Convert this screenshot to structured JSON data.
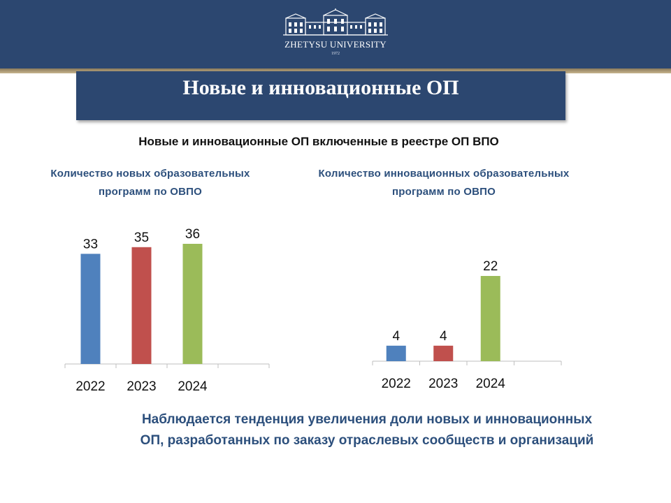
{
  "header": {
    "university_name": "ZHETYSU UNIVERSITY",
    "founded_year": "1972"
  },
  "slide": {
    "title": "Новые и инновационные  ОП",
    "subtitle": "Новые и инновационные ОП включенные в реестре ОП ВПО",
    "conclusion": "Наблюдается тенденция увеличения доли новых и инновационных ОП, разработанных по заказу отраслевых сообществ и организаций"
  },
  "chart_data": [
    {
      "type": "bar",
      "title": "Количество новых образовательных программ  по ОВПО",
      "categories": [
        "2022",
        "2023",
        "2024"
      ],
      "values": [
        33,
        35,
        36
      ],
      "colors": [
        "#4f81bd",
        "#c0504d",
        "#9bbb59"
      ],
      "data_labels": true,
      "grid": false,
      "legend": "none"
    },
    {
      "type": "bar",
      "title": "Количество инновационных образовательных  программ  по ОВПО",
      "categories": [
        "2022",
        "2023",
        "2024"
      ],
      "values": [
        4,
        4,
        22
      ],
      "colors": [
        "#4f81bd",
        "#c0504d",
        "#9bbb59"
      ],
      "data_labels": true,
      "grid": false,
      "legend": "none"
    }
  ]
}
